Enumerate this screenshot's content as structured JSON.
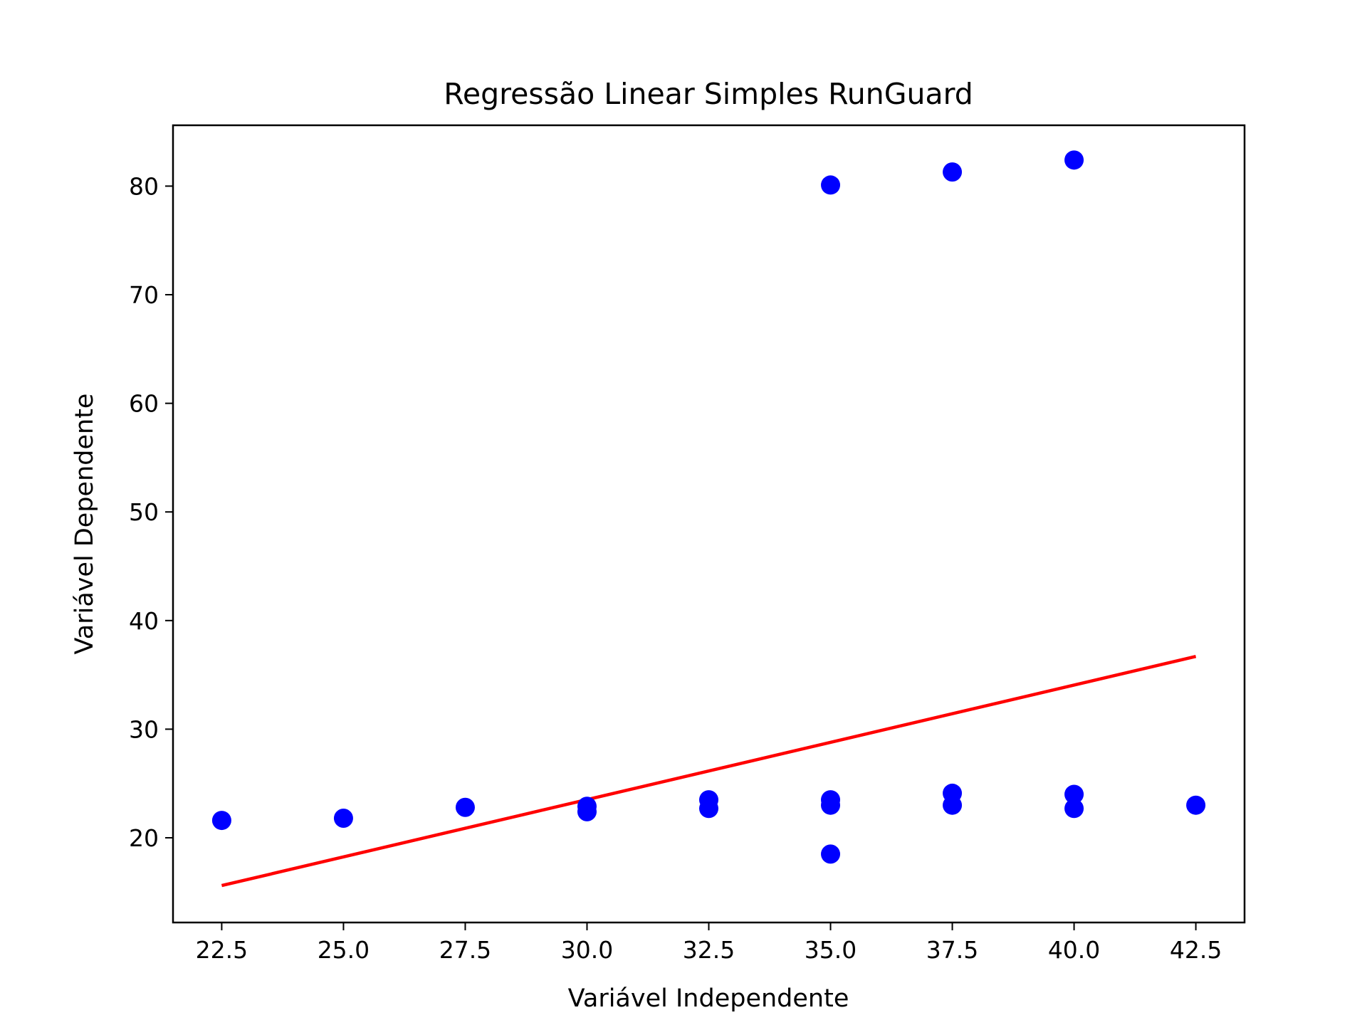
{
  "chart_data": {
    "type": "scatter",
    "title": "Regressão Linear Simples RunGuard",
    "xlabel": "Variável Independente",
    "ylabel": "Variável Dependente",
    "xlim": [
      21.5,
      43.5
    ],
    "ylim": [
      12.2,
      85.6
    ],
    "xticks": [
      "22.5",
      "25.0",
      "27.5",
      "30.0",
      "32.5",
      "35.0",
      "37.5",
      "40.0",
      "42.5"
    ],
    "yticks": [
      "20",
      "30",
      "40",
      "50",
      "60",
      "70",
      "80"
    ],
    "grid": false,
    "point_color": "#0000ff",
    "line_color": "#ff0000",
    "points": [
      {
        "x": 22.5,
        "y": 21.6
      },
      {
        "x": 25.0,
        "y": 21.8
      },
      {
        "x": 27.5,
        "y": 22.8
      },
      {
        "x": 30.0,
        "y": 22.9
      },
      {
        "x": 30.0,
        "y": 22.4
      },
      {
        "x": 32.5,
        "y": 23.5
      },
      {
        "x": 32.5,
        "y": 22.7
      },
      {
        "x": 35.0,
        "y": 80.1
      },
      {
        "x": 35.0,
        "y": 23.5
      },
      {
        "x": 35.0,
        "y": 23.0
      },
      {
        "x": 35.0,
        "y": 18.5
      },
      {
        "x": 37.5,
        "y": 81.3
      },
      {
        "x": 37.5,
        "y": 24.1
      },
      {
        "x": 37.5,
        "y": 23.0
      },
      {
        "x": 40.0,
        "y": 82.4
      },
      {
        "x": 40.0,
        "y": 24.0
      },
      {
        "x": 40.0,
        "y": 22.7
      },
      {
        "x": 42.5,
        "y": 23.0
      }
    ],
    "regression_line": [
      {
        "x": 22.5,
        "y": 15.6
      },
      {
        "x": 42.5,
        "y": 36.7
      }
    ]
  }
}
